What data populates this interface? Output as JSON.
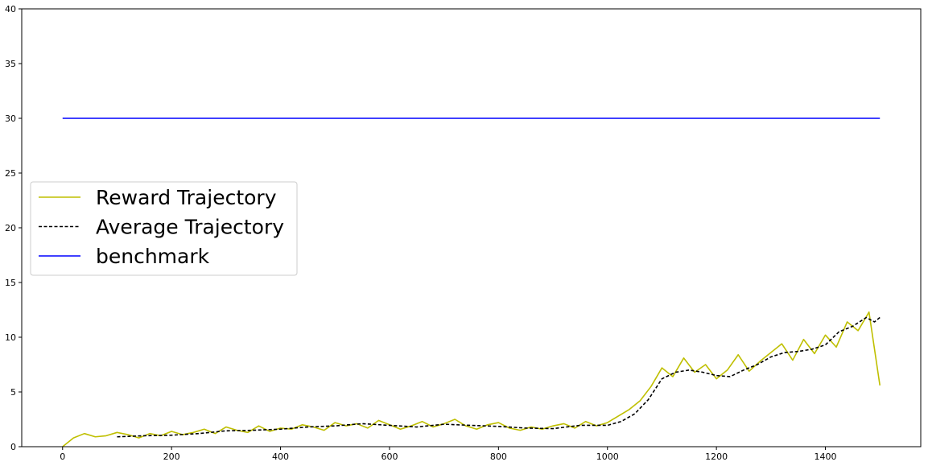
{
  "chart_data": {
    "type": "line",
    "title": "",
    "xlabel": "",
    "ylabel": "",
    "xlim": [
      -75,
      1575
    ],
    "ylim": [
      0,
      40
    ],
    "x_ticks": [
      0,
      200,
      400,
      600,
      800,
      1000,
      1200,
      1400
    ],
    "y_ticks": [
      0,
      5,
      10,
      15,
      20,
      25,
      30,
      35,
      40
    ],
    "grid": false,
    "legend_position": "center-left",
    "series": [
      {
        "name": "Reward Trajectory",
        "color": "#bfbf00",
        "style": "solid",
        "x": [
          0,
          20,
          40,
          60,
          80,
          100,
          120,
          140,
          160,
          180,
          200,
          220,
          240,
          260,
          280,
          300,
          320,
          340,
          360,
          380,
          400,
          420,
          440,
          460,
          480,
          500,
          520,
          540,
          560,
          580,
          600,
          620,
          640,
          660,
          680,
          700,
          720,
          740,
          760,
          780,
          800,
          820,
          840,
          860,
          880,
          900,
          920,
          940,
          960,
          980,
          1000,
          1020,
          1040,
          1060,
          1080,
          1100,
          1120,
          1140,
          1160,
          1180,
          1200,
          1220,
          1240,
          1260,
          1280,
          1300,
          1320,
          1340,
          1360,
          1380,
          1400,
          1420,
          1440,
          1460,
          1480,
          1500
        ],
        "y": [
          0,
          0.8,
          1.2,
          0.9,
          1.0,
          1.3,
          1.1,
          0.8,
          1.2,
          1.0,
          1.4,
          1.1,
          1.3,
          1.6,
          1.2,
          1.8,
          1.5,
          1.3,
          1.9,
          1.4,
          1.7,
          1.6,
          2.0,
          1.8,
          1.5,
          2.2,
          1.9,
          2.1,
          1.7,
          2.4,
          2.0,
          1.6,
          1.9,
          2.3,
          1.8,
          2.1,
          2.5,
          1.9,
          1.6,
          2.0,
          2.2,
          1.7,
          1.5,
          1.8,
          1.6,
          1.9,
          2.1,
          1.7,
          2.3,
          1.9,
          2.2,
          2.8,
          3.4,
          4.2,
          5.5,
          7.2,
          6.4,
          8.1,
          6.8,
          7.5,
          6.2,
          7.0,
          8.4,
          6.9,
          7.8,
          8.6,
          9.4,
          7.9,
          9.8,
          8.5,
          10.2,
          9.1,
          11.4,
          10.6,
          12.3,
          5.6
        ]
      },
      {
        "name": "Average Trajectory",
        "color": "#000000",
        "style": "dashed",
        "x": [
          100,
          150,
          200,
          250,
          300,
          350,
          400,
          450,
          500,
          550,
          600,
          650,
          700,
          750,
          800,
          850,
          900,
          950,
          1000,
          1025,
          1050,
          1075,
          1100,
          1125,
          1150,
          1175,
          1200,
          1225,
          1250,
          1275,
          1300,
          1325,
          1350,
          1375,
          1400,
          1425,
          1450,
          1475,
          1490,
          1500
        ],
        "y": [
          0.9,
          1.0,
          1.05,
          1.2,
          1.45,
          1.5,
          1.6,
          1.8,
          1.9,
          2.1,
          1.95,
          1.8,
          2.05,
          1.95,
          1.85,
          1.7,
          1.65,
          1.95,
          1.95,
          2.3,
          3.0,
          4.3,
          6.2,
          6.8,
          7.0,
          6.8,
          6.5,
          6.4,
          7.0,
          7.5,
          8.2,
          8.6,
          8.7,
          8.9,
          9.3,
          10.5,
          11.0,
          11.8,
          11.4,
          11.8
        ]
      },
      {
        "name": "benchmark",
        "color": "#0000ff",
        "style": "solid",
        "x": [
          0,
          1500
        ],
        "y": [
          30,
          30
        ]
      }
    ]
  }
}
